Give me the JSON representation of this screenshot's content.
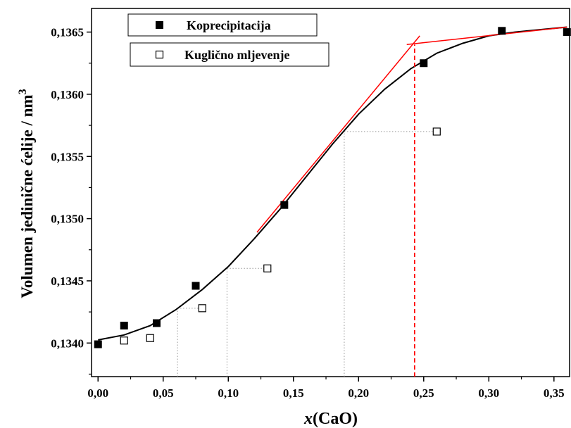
{
  "chart_data": {
    "type": "scatter",
    "xlabel_italic": "x",
    "xlabel_rest": "(CaO)",
    "ylabel_main": "Volumen jedinične ćelije / nm",
    "ylabel_sup": "3",
    "xlim": [
      -0.005,
      0.362
    ],
    "ylim": [
      0.13373,
      0.13669
    ],
    "x_ticks": [
      0,
      0.05,
      0.1,
      0.15,
      0.2,
      0.25,
      0.3,
      0.35
    ],
    "x_tick_labels": [
      "0,00",
      "0,05",
      "0,10",
      "0,15",
      "0,20",
      "0,25",
      "0,30",
      "0,35"
    ],
    "y_ticks": [
      0.134,
      0.1345,
      0.135,
      0.1355,
      0.136,
      0.1365
    ],
    "y_tick_labels": [
      "0,1340",
      "0,1345",
      "0,1350",
      "0,1355",
      "0,1360",
      "0,1365"
    ],
    "series": [
      {
        "name": "Koprecipitacija",
        "marker": "filled-square",
        "color": "#000000",
        "x": [
          0.0,
          0.02,
          0.045,
          0.075,
          0.143,
          0.25,
          0.31,
          0.36
        ],
        "y": [
          0.13399,
          0.13414,
          0.13416,
          0.13446,
          0.13511,
          0.13625,
          0.13651,
          0.1365
        ]
      },
      {
        "name": "Kuglično mljevenje",
        "marker": "open-square",
        "color": "#000000",
        "x": [
          0.02,
          0.04,
          0.08,
          0.13,
          0.26
        ],
        "y": [
          0.13402,
          0.13404,
          0.13428,
          0.1346,
          0.1357
        ]
      }
    ],
    "fit_curve": {
      "color": "#000000",
      "x": [
        0.0,
        0.02,
        0.04,
        0.06,
        0.08,
        0.1,
        0.12,
        0.14,
        0.16,
        0.18,
        0.2,
        0.22,
        0.24,
        0.26,
        0.28,
        0.3,
        0.32,
        0.34,
        0.36
      ],
      "y": [
        0.134025,
        0.134065,
        0.13414,
        0.13427,
        0.13443,
        0.134615,
        0.13484,
        0.13508,
        0.13534,
        0.1356,
        0.13584,
        0.13604,
        0.136205,
        0.13633,
        0.13641,
        0.13647,
        0.1365,
        0.13652,
        0.13654
      ]
    },
    "tangent_lines": [
      {
        "color": "#ff0000",
        "x": [
          0.122,
          0.247
        ],
        "y": [
          0.13489,
          0.13647
        ]
      },
      {
        "color": "#ff0000",
        "x": [
          0.237,
          0.36
        ],
        "y": [
          0.1364,
          0.13654
        ]
      }
    ],
    "dashed_vertical": {
      "color": "#ff0000",
      "x": 0.243,
      "y_from": 0.13373,
      "y_to": 0.1364
    },
    "dotted_guides": {
      "color": "#999999",
      "segments": [
        {
          "x": 0.061,
          "y": 0.13428,
          "x_to": 0.08
        },
        {
          "x": 0.099,
          "y": 0.1346,
          "x_to": 0.13
        },
        {
          "x": 0.189,
          "y": 0.1357,
          "x_to": 0.26
        }
      ]
    },
    "legend_position": "top-left",
    "grid": false
  }
}
